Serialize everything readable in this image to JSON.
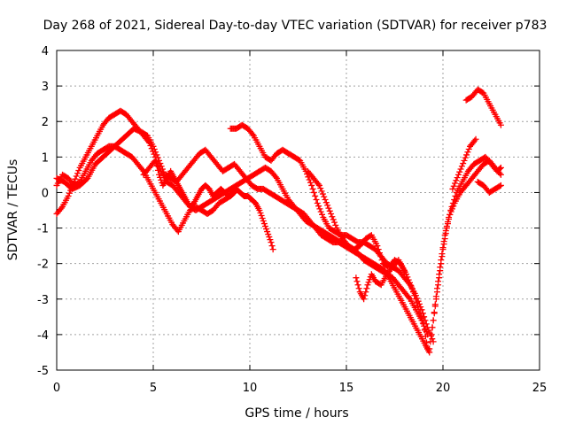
{
  "chart_data": {
    "type": "scatter",
    "title": "Day 268 of 2021, Sidereal Day-to-day VTEC variation (SDTVAR) for receiver p783",
    "xlabel": "GPS time / hours",
    "ylabel": "SDTVAR / TECUs",
    "xlim": [
      0,
      25
    ],
    "ylim": [
      -5,
      4
    ],
    "xticks": [
      0,
      5,
      10,
      15,
      20,
      25
    ],
    "yticks": [
      -5,
      -4,
      -3,
      -2,
      -1,
      0,
      1,
      2,
      3,
      4
    ],
    "x_tick_labels": [
      "0",
      "5",
      "10",
      "15",
      "20",
      "25"
    ],
    "y_tick_labels": [
      "-5",
      "-4",
      "-3",
      "-2",
      "-1",
      "0",
      "1",
      "2",
      "3",
      "4"
    ],
    "grid": true,
    "marker": "+",
    "color": "#ff0000",
    "series": [
      {
        "name": "s1",
        "x": [
          0.0,
          0.3,
          0.6,
          0.9,
          1.2,
          1.5,
          1.8,
          2.1,
          2.4,
          2.7,
          3.0,
          3.3,
          3.6,
          3.9,
          4.2,
          4.5,
          4.8,
          5.1,
          5.3,
          5.5,
          5.7,
          5.9,
          6.1,
          6.3,
          6.5,
          6.7,
          6.9,
          7.1,
          7.3,
          7.5,
          7.7,
          7.9,
          8.1,
          8.3,
          8.5,
          8.7,
          8.9,
          9.1,
          9.3,
          9.5,
          9.7,
          9.9,
          10.1,
          10.3,
          10.5,
          10.7,
          10.9,
          11.1,
          11.2
        ],
        "y": [
          -0.6,
          -0.4,
          -0.1,
          0.3,
          0.7,
          1.0,
          1.3,
          1.6,
          1.9,
          2.1,
          2.2,
          2.3,
          2.2,
          2.0,
          1.8,
          1.6,
          1.4,
          1.0,
          0.5,
          0.2,
          0.4,
          0.6,
          0.4,
          0.2,
          0.0,
          -0.2,
          -0.4,
          -0.3,
          -0.1,
          0.1,
          0.2,
          0.1,
          -0.1,
          0.0,
          0.1,
          0.0,
          -0.1,
          0.0,
          0.1,
          0.0,
          -0.1,
          -0.1,
          -0.2,
          -0.3,
          -0.5,
          -0.8,
          -1.1,
          -1.4,
          -1.6
        ]
      },
      {
        "name": "s2",
        "x": [
          0.0,
          0.3,
          0.6,
          0.9,
          1.2,
          1.5,
          1.8,
          2.1,
          2.4,
          2.7,
          3.0,
          3.3,
          3.6,
          3.9,
          4.2,
          4.5,
          4.8,
          5.1,
          5.4,
          5.7,
          6.0,
          6.3,
          6.6,
          6.9,
          7.2,
          7.5,
          7.8,
          8.1,
          8.4,
          8.7,
          9.0,
          9.2
        ],
        "y": [
          0.2,
          0.5,
          0.4,
          0.2,
          0.3,
          0.6,
          0.9,
          1.1,
          1.2,
          1.3,
          1.3,
          1.2,
          1.1,
          1.0,
          0.8,
          0.6,
          0.3,
          0.0,
          -0.3,
          -0.6,
          -0.9,
          -1.1,
          -0.8,
          -0.5,
          -0.4,
          -0.5,
          -0.6,
          -0.5,
          -0.3,
          -0.2,
          -0.1,
          0.0
        ]
      },
      {
        "name": "s3",
        "x": [
          0.0,
          0.4,
          0.8,
          1.2,
          1.6,
          2.0,
          2.4,
          2.8,
          3.2,
          3.6,
          4.0,
          4.4,
          4.7,
          5.0,
          5.3,
          5.6,
          5.9,
          6.2,
          6.5,
          6.8,
          7.1,
          7.4,
          7.7,
          8.0,
          8.3,
          8.6,
          8.9,
          9.2,
          9.5,
          9.8,
          10.1,
          10.4,
          10.7,
          11.0,
          11.3,
          11.6,
          11.9,
          12.2,
          12.5,
          12.8,
          13.1,
          13.4,
          13.7,
          14.0,
          14.3,
          14.6,
          14.9,
          15.2,
          15.5,
          15.8,
          16.1,
          16.4,
          16.7,
          17.0,
          17.3,
          17.6,
          17.9,
          18.2,
          18.5,
          18.8,
          19.1,
          19.3
        ],
        "y": [
          0.4,
          0.3,
          0.1,
          0.2,
          0.4,
          0.8,
          1.0,
          1.2,
          1.4,
          1.6,
          1.8,
          1.7,
          1.6,
          1.3,
          0.9,
          0.5,
          0.4,
          0.3,
          0.5,
          0.7,
          0.9,
          1.1,
          1.2,
          1.0,
          0.8,
          0.6,
          0.7,
          0.8,
          0.6,
          0.4,
          0.2,
          0.1,
          0.1,
          0.0,
          -0.1,
          -0.2,
          -0.3,
          -0.4,
          -0.5,
          -0.6,
          -0.8,
          -1.0,
          -1.2,
          -1.3,
          -1.4,
          -1.4,
          -1.5,
          -1.6,
          -1.7,
          -1.8,
          -1.9,
          -2.0,
          -2.1,
          -2.2,
          -2.5,
          -2.8,
          -3.1,
          -3.4,
          -3.7,
          -4.0,
          -4.3,
          -4.5
        ]
      },
      {
        "name": "s4",
        "x": [
          4.5,
          4.8,
          5.1,
          5.4,
          5.7,
          6.0,
          6.3,
          6.6,
          6.9,
          7.2,
          7.5,
          7.8,
          8.1,
          8.4,
          8.7,
          9.0,
          9.3,
          9.6,
          9.9,
          10.2,
          10.5,
          10.8,
          11.1,
          11.4,
          11.7,
          12.0,
          12.3,
          12.6,
          12.9,
          13.2,
          13.5,
          13.8,
          14.1,
          14.4,
          14.7,
          15.0,
          15.3,
          15.6,
          15.9,
          16.2,
          16.5,
          16.8,
          17.1,
          17.4,
          17.7,
          18.0,
          18.3,
          18.6,
          18.9,
          19.2
        ],
        "y": [
          0.5,
          0.7,
          0.9,
          0.6,
          0.3,
          0.2,
          0.0,
          -0.2,
          -0.4,
          -0.5,
          -0.4,
          -0.3,
          -0.2,
          -0.1,
          0.0,
          0.1,
          0.2,
          0.3,
          0.4,
          0.5,
          0.6,
          0.7,
          0.6,
          0.4,
          0.1,
          -0.2,
          -0.4,
          -0.6,
          -0.8,
          -0.9,
          -1.0,
          -1.1,
          -1.2,
          -1.3,
          -1.4,
          -1.5,
          -1.6,
          -1.7,
          -1.9,
          -2.0,
          -2.1,
          -2.2,
          -2.3,
          -2.4,
          -2.6,
          -2.8,
          -3.0,
          -3.3,
          -3.6,
          -4.0
        ]
      },
      {
        "name": "s5",
        "x": [
          9.0,
          9.3,
          9.6,
          9.9,
          10.2,
          10.5,
          10.8,
          11.1,
          11.4,
          11.7,
          12.0,
          12.3,
          12.6,
          12.9,
          13.2,
          13.5,
          13.8,
          14.1,
          14.4,
          14.7,
          15.0,
          15.3,
          15.6,
          15.9,
          16.2,
          16.5,
          16.8,
          17.1,
          17.4,
          17.7,
          18.0,
          18.3,
          18.6,
          18.9,
          19.2,
          19.5
        ],
        "y": [
          1.8,
          1.8,
          1.9,
          1.8,
          1.6,
          1.3,
          1.0,
          0.9,
          1.1,
          1.2,
          1.1,
          1.0,
          0.9,
          0.6,
          0.2,
          -0.3,
          -0.7,
          -1.0,
          -1.1,
          -1.2,
          -1.2,
          -1.3,
          -1.4,
          -1.4,
          -1.5,
          -1.6,
          -1.8,
          -2.0,
          -2.1,
          -2.2,
          -2.4,
          -2.6,
          -2.9,
          -3.3,
          -3.8,
          -4.2
        ]
      },
      {
        "name": "s6",
        "x": [
          13.0,
          13.3,
          13.6,
          13.9,
          14.2,
          14.5,
          14.8,
          15.1,
          15.4,
          15.7,
          16.0,
          16.3,
          16.6,
          16.9,
          17.2,
          17.5,
          17.8,
          18.1,
          18.4,
          18.7,
          19.0,
          19.2
        ],
        "y": [
          0.6,
          0.4,
          0.2,
          -0.2,
          -0.6,
          -1.0,
          -1.3,
          -1.5,
          -1.6,
          -1.5,
          -1.3,
          -1.2,
          -1.5,
          -2.0,
          -2.1,
          -1.9,
          -2.0,
          -2.3,
          -2.7,
          -3.2,
          -3.7,
          -4.4
        ]
      },
      {
        "name": "s7",
        "x": [
          15.5,
          15.7,
          15.9,
          16.1,
          16.3,
          16.5,
          16.8,
          17.1,
          17.4,
          17.7,
          18.0
        ],
        "y": [
          -2.4,
          -2.8,
          -3.0,
          -2.6,
          -2.3,
          -2.5,
          -2.6,
          -2.3,
          -2.1,
          -1.9,
          -2.2
        ]
      },
      {
        "name": "s8",
        "x": [
          19.3,
          19.5,
          19.7,
          19.9,
          20.1,
          20.3,
          20.6,
          20.9,
          21.2,
          21.5,
          21.8,
          22.1,
          22.4,
          22.7,
          23.0
        ],
        "y": [
          -4.4,
          -3.6,
          -2.7,
          -1.9,
          -1.2,
          -0.7,
          -0.3,
          0.0,
          0.2,
          0.4,
          0.6,
          0.8,
          0.9,
          0.7,
          0.5
        ]
      },
      {
        "name": "s9",
        "x": [
          19.4,
          19.6,
          19.8,
          20.0,
          20.2,
          20.4,
          20.7,
          21.0,
          21.3,
          21.6,
          21.9,
          22.2,
          22.5,
          22.8,
          23.0
        ],
        "y": [
          -4.0,
          -3.2,
          -2.4,
          -1.6,
          -1.0,
          -0.5,
          0.0,
          0.3,
          0.6,
          0.8,
          0.9,
          1.0,
          0.8,
          0.6,
          0.7
        ]
      },
      {
        "name": "s10",
        "x": [
          20.5,
          20.8,
          21.1,
          21.4,
          21.7
        ],
        "y": [
          0.1,
          0.5,
          0.9,
          1.3,
          1.5
        ]
      },
      {
        "name": "s11",
        "x": [
          21.2,
          21.5,
          21.8,
          22.1,
          22.4,
          22.7,
          23.0
        ],
        "y": [
          2.6,
          2.7,
          2.9,
          2.8,
          2.5,
          2.2,
          1.9
        ]
      },
      {
        "name": "s12",
        "x": [
          21.8,
          22.1,
          22.4,
          22.7,
          23.0
        ],
        "y": [
          0.3,
          0.2,
          0.0,
          0.1,
          0.2
        ]
      }
    ]
  }
}
